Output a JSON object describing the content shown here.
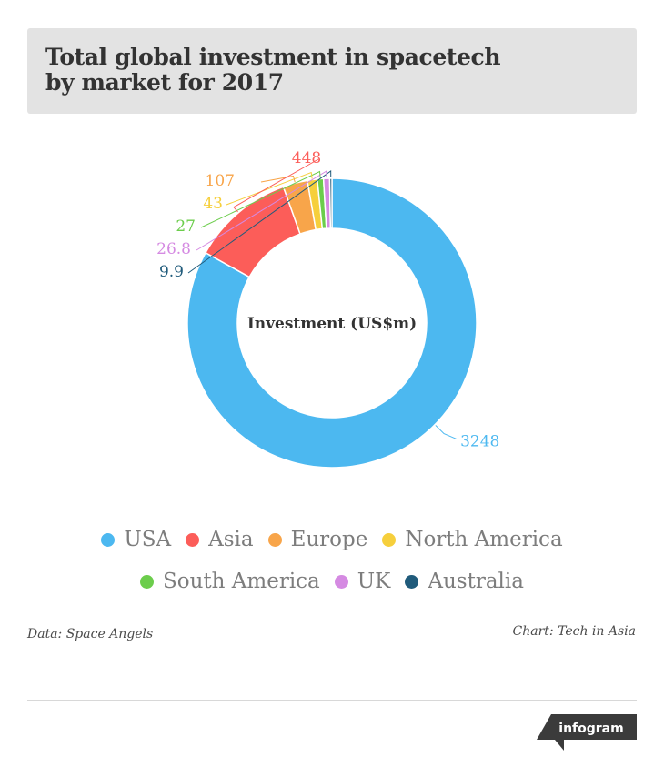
{
  "header": {
    "title": "Total global investment in spacetech by market for 2017"
  },
  "chart_data": {
    "type": "pie",
    "subtype": "donut",
    "center_label": "Investment (US$m)",
    "categories": [
      "USA",
      "Asia",
      "Europe",
      "North America",
      "South America",
      "UK",
      "Australia"
    ],
    "values": [
      3248,
      448,
      107,
      43,
      27,
      26.8,
      9.9
    ],
    "value_labels": [
      "3248",
      "448",
      "107",
      "43",
      "27",
      "26.8",
      "9.9"
    ],
    "colors": [
      "#4cb8f0",
      "#fc5d59",
      "#f8a54a",
      "#f6cf3c",
      "#6ccd4c",
      "#d58ae2",
      "#205b7b"
    ],
    "legend_position": "bottom"
  },
  "footer": {
    "source": "Data: Space Angels",
    "credit": "Chart: Tech in Asia",
    "brand": "infogram"
  }
}
